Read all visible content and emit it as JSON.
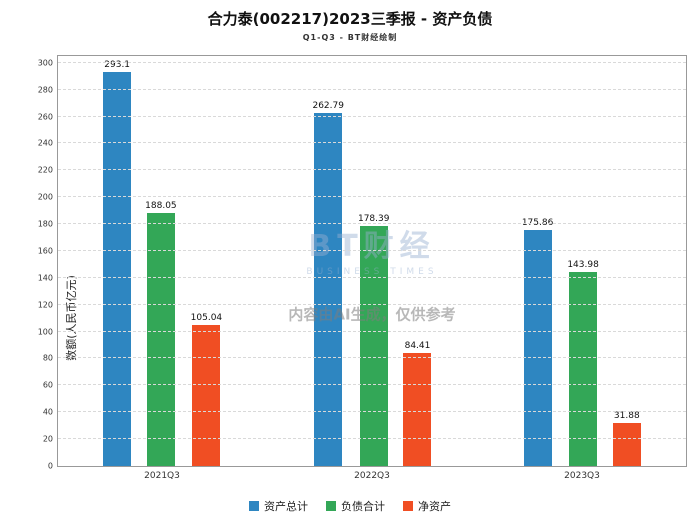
{
  "header": {
    "title": "合力泰(002217)2023三季报 - 资产负债",
    "subtitle": "Q1-Q3 - BT财经绘制"
  },
  "watermark": {
    "logo": "BT财经",
    "logo_sub": "BUSINESS TIMES",
    "notice": "内容由AI生成，仅供参考"
  },
  "chart_data": {
    "type": "bar",
    "title": "合力泰(002217)2023三季报 - 资产负债",
    "subtitle": "Q1-Q3 - BT财经绘制",
    "categories": [
      "2021Q3",
      "2022Q3",
      "2023Q3"
    ],
    "series": [
      {
        "name": "资产总计",
        "color": "#2e86c1",
        "values": [
          293.1,
          262.79,
          175.86
        ]
      },
      {
        "name": "负债合计",
        "color": "#33a757",
        "values": [
          188.05,
          178.39,
          143.98
        ]
      },
      {
        "name": "净资产",
        "color": "#f04e23",
        "values": [
          105.04,
          84.41,
          31.88
        ]
      }
    ],
    "xlabel": "",
    "ylabel": "数额(人民币亿元)",
    "ylim": [
      0,
      300
    ],
    "yticks": [
      0,
      20,
      40,
      60,
      80,
      100,
      120,
      140,
      160,
      180,
      200,
      220,
      240,
      260,
      280,
      300
    ],
    "grid": true,
    "legend_position": "bottom"
  }
}
